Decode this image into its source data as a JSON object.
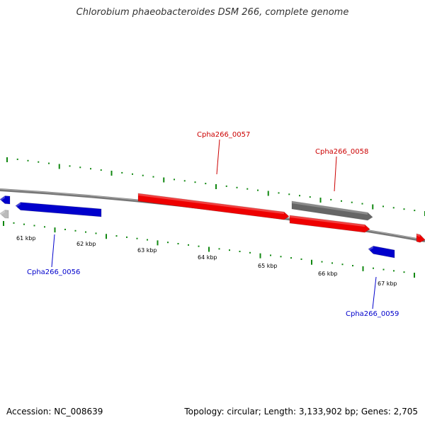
{
  "title": "Chlorobium phaeobacteroides DSM 266, complete genome",
  "accession": "Accession: NC_008639",
  "topology_info": "Topology: circular; Length: 3,133,902 bp; Genes: 2,705",
  "colors": {
    "forward_strand": "#ee0000",
    "reverse_strand": "#0000cc",
    "other_gene": "#666666",
    "partial_gene": "#bbbbbb",
    "ticks": "#118811",
    "backbone": "#777777"
  },
  "scale_labels": [
    "61 kbp",
    "62 kbp",
    "63 kbp",
    "64 kbp",
    "65 kbp",
    "66 kbp",
    "67 kbp"
  ],
  "genes": [
    {
      "id": "edge-left-blue",
      "label": "",
      "color": "reverse_strand",
      "direction": "left"
    },
    {
      "id": "edge-left-grey",
      "label": "",
      "color": "partial_gene",
      "direction": "left"
    },
    {
      "id": "Cpha266_0056",
      "label": "Cpha266_0056",
      "color": "reverse_strand",
      "direction": "left"
    },
    {
      "id": "Cpha266_0057",
      "label": "Cpha266_0057",
      "color": "forward_strand",
      "direction": "right"
    },
    {
      "id": "Cpha266_0058",
      "label": "Cpha266_0058",
      "color": "other_gene",
      "direction": "right"
    },
    {
      "id": "Cpha266_0058b",
      "label": "",
      "color": "forward_strand",
      "direction": "right"
    },
    {
      "id": "Cpha266_0059",
      "label": "Cpha266_0059",
      "color": "reverse_strand",
      "direction": "left"
    },
    {
      "id": "edge-right-red",
      "label": "",
      "color": "forward_strand",
      "direction": "right"
    }
  ]
}
